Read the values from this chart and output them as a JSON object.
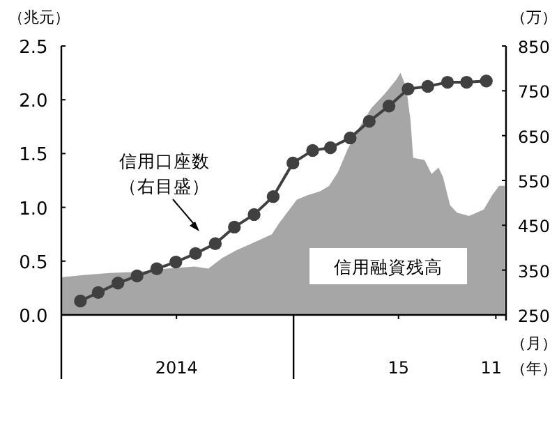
{
  "chart_data": {
    "type": "area",
    "ylabel": "（兆元）",
    "y2label": "（万）",
    "xlabel": "（月）",
    "annotations": [
      "（年）"
    ],
    "xlim": [
      "2014-01-01",
      "2015-12-01"
    ],
    "xticks": [
      {
        "value": "2014-01-01",
        "label": null
      },
      {
        "value": "2014-07-01",
        "label": "2014"
      },
      {
        "value": "2015-01-01",
        "label": null
      },
      {
        "value": "2015-06-15",
        "label": "15"
      },
      {
        "value": "2015-11-15",
        "label": "11"
      },
      {
        "value": "2015-12-01",
        "label": null
      }
    ],
    "ylim": [
      0,
      2.5
    ],
    "yticks": [
      {
        "value": 0,
        "label": "0.0"
      },
      {
        "value": 0.5,
        "label": "0.5"
      },
      {
        "value": 1,
        "label": "1.0"
      },
      {
        "value": 1.5,
        "label": "1.5"
      },
      {
        "value": 2,
        "label": "2.0"
      },
      {
        "value": 2.5,
        "label": "2.5"
      }
    ],
    "y2lim": [
      250,
      850
    ],
    "y2ticks": [
      250,
      350,
      450,
      550,
      650,
      750,
      850
    ],
    "grid": false,
    "series": [
      {
        "name": "信用融資残高",
        "color": "#a6a6a6",
        "x": [
          "2014-01-01",
          "2014-02-05",
          "2014-03-19",
          "2014-05-02",
          "2014-06-15",
          "2014-07-29",
          "2014-08-20",
          "2014-09-11",
          "2014-10-03",
          "2014-10-26",
          "2014-11-28",
          "2014-12-09",
          "2015-01-06",
          "2015-01-22",
          "2015-02-12",
          "2015-02-26",
          "2015-03-12",
          "2015-03-27",
          "2015-04-12",
          "2015-05-03",
          "2015-05-25",
          "2015-06-12",
          "2015-06-18",
          "2015-06-27",
          "2015-07-04",
          "2015-07-08",
          "2015-07-26",
          "2015-08-06",
          "2015-08-17",
          "2015-08-24",
          "2015-09-04",
          "2015-09-15",
          "2015-10-04",
          "2015-10-27",
          "2015-11-09",
          "2015-11-20",
          "2015-11-29"
        ],
        "values": [
          0.35,
          0.37,
          0.39,
          0.4,
          0.43,
          0.45,
          0.43,
          0.53,
          0.6,
          0.66,
          0.75,
          0.85,
          1.07,
          1.11,
          1.15,
          1.2,
          1.33,
          1.54,
          1.72,
          1.92,
          2.06,
          2.19,
          2.25,
          2.12,
          1.8,
          1.46,
          1.44,
          1.31,
          1.37,
          1.28,
          1.02,
          0.95,
          0.92,
          0.98,
          1.11,
          1.2,
          1.2
        ]
      },
      {
        "name": "信用口座数（右目盛）",
        "type": "line",
        "axis": "y2",
        "color": "#404040",
        "marker": "circle",
        "x": [
          "2014-01-31",
          "2014-02-28",
          "2014-03-31",
          "2014-04-30",
          "2014-05-31",
          "2014-06-30",
          "2014-07-31",
          "2014-08-31",
          "2014-09-30",
          "2014-10-31",
          "2014-11-30",
          "2014-12-31",
          "2015-01-31",
          "2015-02-28",
          "2015-03-31",
          "2015-04-30",
          "2015-05-31",
          "2015-06-30",
          "2015-07-31",
          "2015-08-31",
          "2015-09-30",
          "2015-10-31"
        ],
        "values": [
          281,
          300,
          321,
          337,
          353,
          368,
          387,
          409,
          446,
          474,
          514,
          589,
          617,
          623,
          645,
          682,
          716,
          754,
          760,
          769,
          769,
          772
        ]
      }
    ]
  }
}
